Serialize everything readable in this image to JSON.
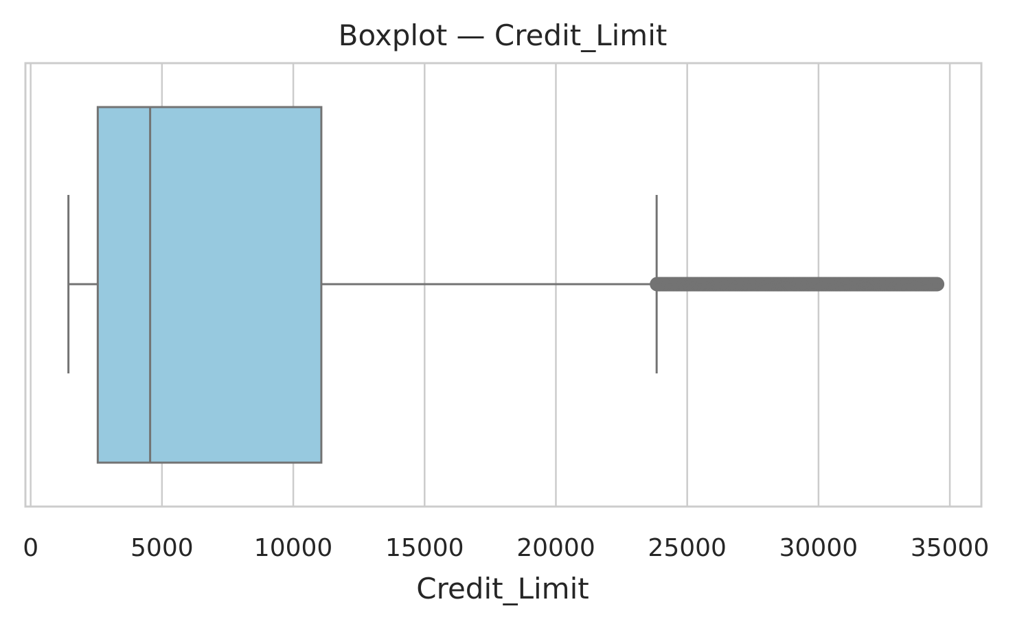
{
  "chart_data": {
    "type": "box",
    "title": "Boxplot — Credit_Limit",
    "xlabel": "Credit_Limit",
    "ylabel": "",
    "xlim": [
      -200,
      36200
    ],
    "x_ticks": [
      0,
      5000,
      10000,
      15000,
      20000,
      25000,
      30000,
      35000
    ],
    "grid": true,
    "orientation": "horizontal",
    "series": [
      {
        "min": 1438,
        "q1": 2555,
        "median": 4549,
        "q3": 11068,
        "max": 23836,
        "outlier_range": [
          23850,
          34516
        ]
      }
    ],
    "colors": {
      "box_fill": "#97c9df",
      "box_edge": "#737373",
      "grid": "#cccccc",
      "spine": "#cccccc"
    }
  }
}
